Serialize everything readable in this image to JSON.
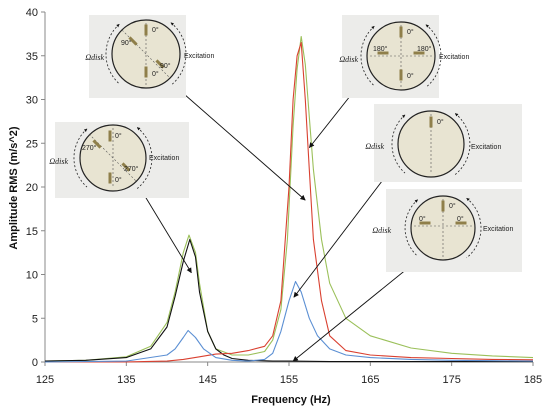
{
  "chart_data": {
    "type": "line",
    "title": "",
    "xlabel": "Frequency (Hz)",
    "ylabel": "Amplitude RMS (m/s^2)",
    "xlim": [
      125,
      185
    ],
    "ylim": [
      0,
      40
    ],
    "xticks": [
      "125",
      "135",
      "145",
      "155",
      "165",
      "175",
      "185"
    ],
    "yticks": [
      "0",
      "5",
      "10",
      "15",
      "20",
      "25",
      "30",
      "35",
      "40"
    ],
    "grid": false,
    "legend": "none",
    "series": [
      {
        "color": "#9bc05a",
        "points": [
          [
            125,
            0.1
          ],
          [
            130,
            0.2
          ],
          [
            135,
            0.6
          ],
          [
            138,
            1.8
          ],
          [
            140,
            4.5
          ],
          [
            141,
            8
          ],
          [
            142,
            12.5
          ],
          [
            142.7,
            14.5
          ],
          [
            143.5,
            12.5
          ],
          [
            144,
            9
          ],
          [
            145,
            3.5
          ],
          [
            146,
            1.5
          ],
          [
            148,
            0.8
          ],
          [
            150,
            0.8
          ],
          [
            152,
            1.2
          ],
          [
            153,
            2.5
          ],
          [
            154,
            6
          ],
          [
            154.8,
            14
          ],
          [
            155.5,
            27
          ],
          [
            156,
            33.5
          ],
          [
            156.5,
            37.2
          ],
          [
            157,
            34
          ],
          [
            157.5,
            28
          ],
          [
            158,
            22
          ],
          [
            159,
            14
          ],
          [
            160,
            9
          ],
          [
            162,
            5
          ],
          [
            165,
            3
          ],
          [
            170,
            1.6
          ],
          [
            175,
            1
          ],
          [
            180,
            0.7
          ],
          [
            185,
            0.5
          ]
        ]
      },
      {
        "color": "#111111",
        "points": [
          [
            125,
            0.1
          ],
          [
            130,
            0.2
          ],
          [
            135,
            0.5
          ],
          [
            138,
            1.5
          ],
          [
            140,
            4
          ],
          [
            141,
            7.5
          ],
          [
            142,
            11.5
          ],
          [
            142.8,
            14
          ],
          [
            143.5,
            12
          ],
          [
            144,
            8
          ],
          [
            145,
            3.5
          ],
          [
            146,
            1.5
          ],
          [
            147,
            0.8
          ],
          [
            148,
            0.4
          ],
          [
            150,
            0.2
          ],
          [
            153,
            0.1
          ],
          [
            155,
            0.1
          ],
          [
            160,
            0.05
          ],
          [
            165,
            0.05
          ],
          [
            170,
            0.05
          ],
          [
            175,
            0.05
          ],
          [
            180,
            0.05
          ],
          [
            185,
            0.05
          ]
        ]
      },
      {
        "color": "#d94030",
        "points": [
          [
            125,
            0
          ],
          [
            135,
            0
          ],
          [
            140,
            0.1
          ],
          [
            142,
            0.3
          ],
          [
            144,
            0.6
          ],
          [
            146,
            0.9
          ],
          [
            148,
            1
          ],
          [
            150,
            1.3
          ],
          [
            152,
            1.8
          ],
          [
            153,
            3
          ],
          [
            154,
            7
          ],
          [
            155,
            20
          ],
          [
            155.5,
            30
          ],
          [
            156,
            35
          ],
          [
            156.5,
            36.5
          ],
          [
            157,
            30
          ],
          [
            157.5,
            22
          ],
          [
            158,
            14
          ],
          [
            159,
            7
          ],
          [
            160,
            3
          ],
          [
            162,
            1.3
          ],
          [
            165,
            0.8
          ],
          [
            170,
            0.5
          ],
          [
            175,
            0.4
          ],
          [
            180,
            0.3
          ],
          [
            185,
            0.25
          ]
        ]
      },
      {
        "color": "#5b8fd3",
        "points": [
          [
            125,
            0
          ],
          [
            135,
            0.1
          ],
          [
            140,
            0.8
          ],
          [
            141,
            1.5
          ],
          [
            142,
            2.8
          ],
          [
            142.6,
            3.6
          ],
          [
            143.5,
            2.8
          ],
          [
            144.5,
            1.5
          ],
          [
            146,
            0.5
          ],
          [
            148,
            0.2
          ],
          [
            150,
            0.1
          ],
          [
            152,
            0.3
          ],
          [
            153,
            1
          ],
          [
            154,
            3.5
          ],
          [
            155,
            7
          ],
          [
            155.8,
            9.2
          ],
          [
            156.5,
            8
          ],
          [
            157.5,
            5
          ],
          [
            158.5,
            3
          ],
          [
            160,
            1.5
          ],
          [
            162,
            0.8
          ],
          [
            165,
            0.5
          ],
          [
            170,
            0.3
          ],
          [
            175,
            0.2
          ],
          [
            180,
            0.15
          ],
          [
            185,
            0.1
          ]
        ]
      }
    ],
    "annotations": [
      {
        "labels": [
          "0°",
          "90°",
          "0°",
          "90°"
        ],
        "omega": "Ωdisk",
        "excitation": "Excitation",
        "target": [
          157,
          18.5
        ]
      },
      {
        "labels": [
          "0°",
          "180°",
          "180°",
          "0°"
        ],
        "omega": "Ωdisk",
        "excitation": "Excitation",
        "target": [
          157.5,
          24.5
        ]
      },
      {
        "labels": [
          "0°",
          "270°",
          "270°",
          "0°"
        ],
        "omega": "Ωdisk",
        "excitation": "Excitation",
        "target": [
          143,
          10.2
        ]
      },
      {
        "labels": [
          "0°"
        ],
        "omega": "Ωdisk",
        "excitation": "Excitation",
        "target": [
          155.6,
          7.4
        ]
      },
      {
        "labels": [
          "0°",
          "0°",
          "0°"
        ],
        "omega": "Ωdisk",
        "excitation": "Excitation",
        "target": [
          155.5,
          0.1
        ]
      }
    ]
  }
}
